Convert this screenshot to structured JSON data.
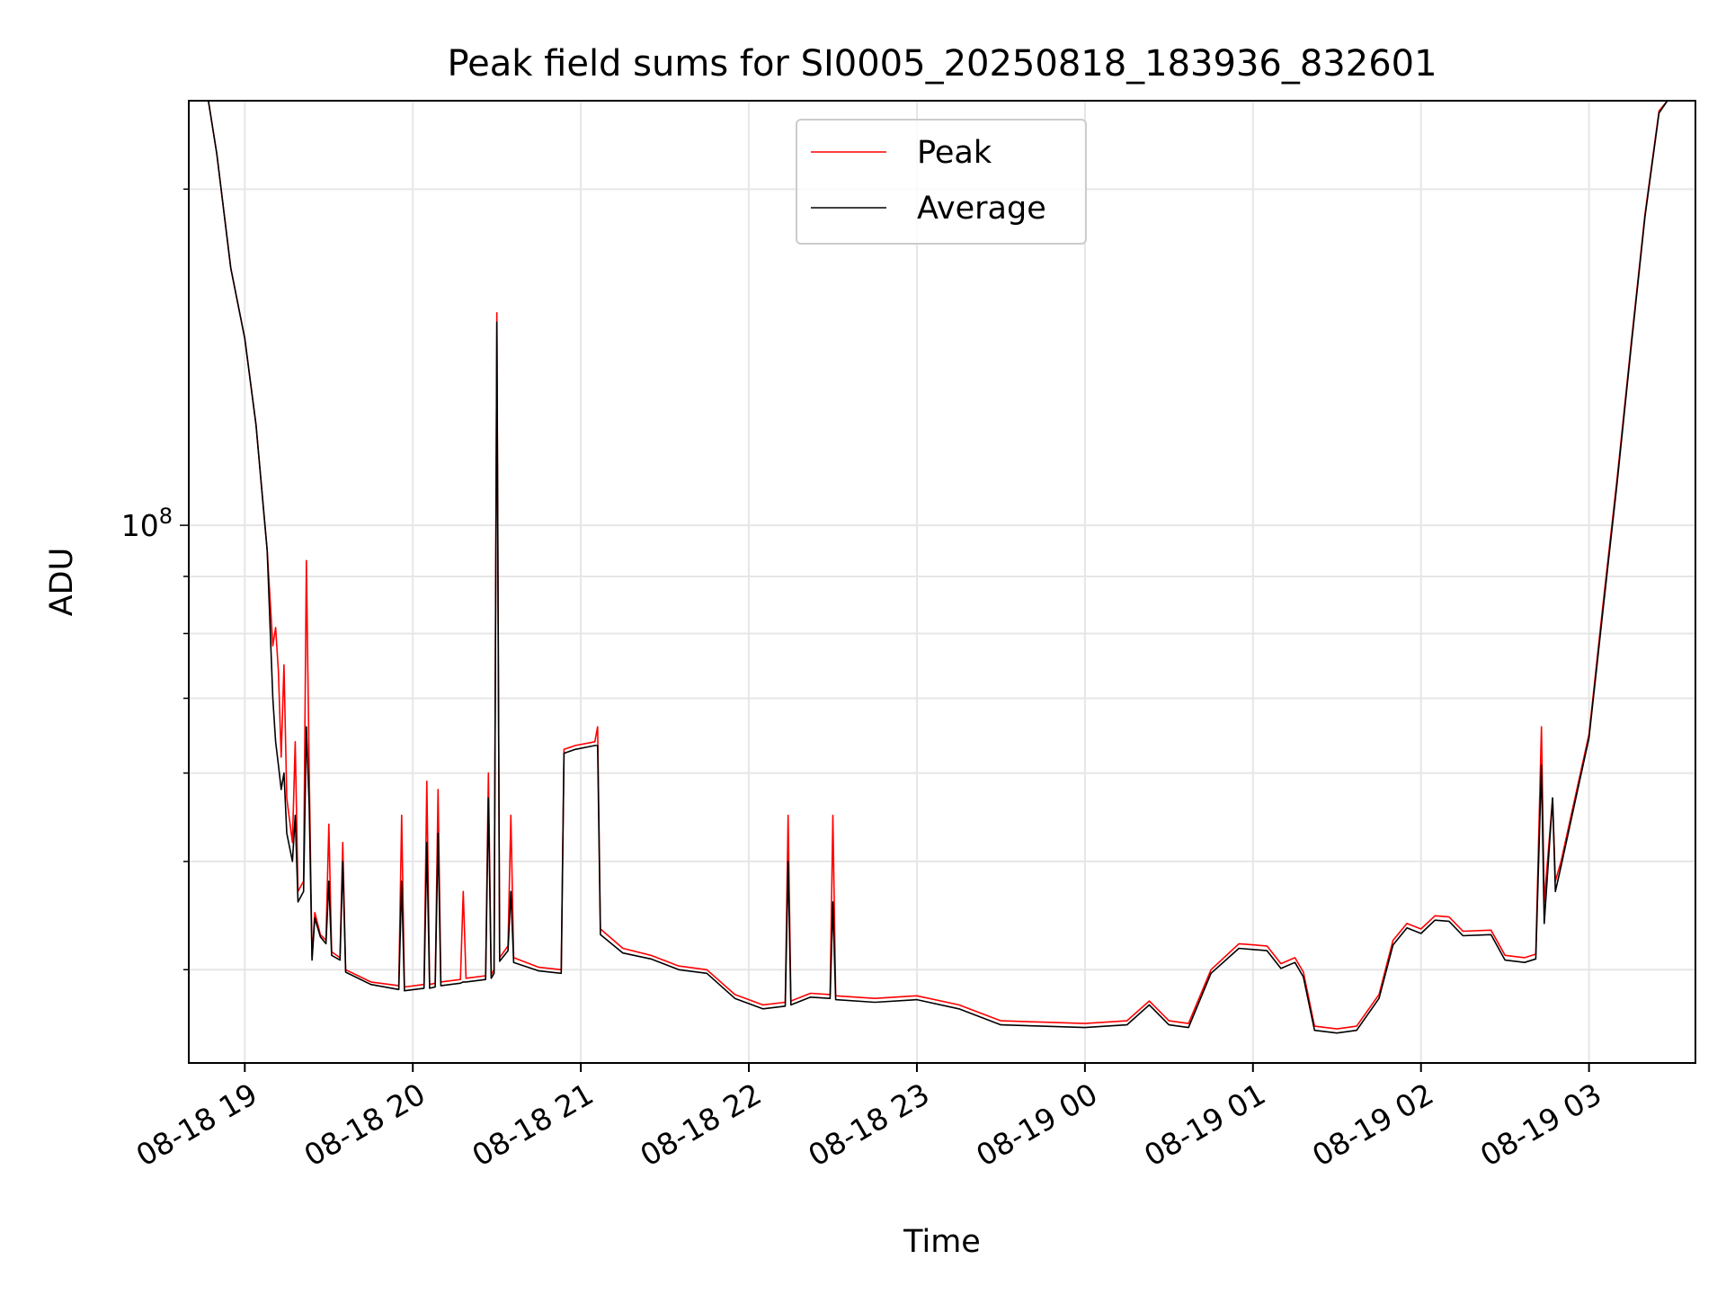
{
  "chart_data": {
    "type": "line",
    "title": "Peak field sums for SI0005_20250818_183936_832601",
    "xlabel": "Time",
    "ylabel": "ADU",
    "yscale": "log",
    "xlim": [
      "2025-08-18 18:40",
      "2025-08-19 03:38"
    ],
    "ylim": [
      33000000,
      240000000
    ],
    "grid": true,
    "legend_loc": "upper center",
    "x_ticks": [
      {
        "t": "2025-08-18 19:00",
        "label": "08-18 19"
      },
      {
        "t": "2025-08-18 20:00",
        "label": "08-18 20"
      },
      {
        "t": "2025-08-18 21:00",
        "label": "08-18 21"
      },
      {
        "t": "2025-08-18 22:00",
        "label": "08-18 22"
      },
      {
        "t": "2025-08-18 23:00",
        "label": "08-18 23"
      },
      {
        "t": "2025-08-19 00:00",
        "label": "08-19 00"
      },
      {
        "t": "2025-08-19 01:00",
        "label": "08-19 01"
      },
      {
        "t": "2025-08-19 02:00",
        "label": "08-19 02"
      },
      {
        "t": "2025-08-19 03:00",
        "label": "08-19 03"
      }
    ],
    "y_tick_label": {
      "value": 100000000,
      "base": "10",
      "exp": "8"
    },
    "series": [
      {
        "name": "Peak",
        "color": "#ff0000",
        "points": [
          [
            "2025-08-18 18:40",
            240000000
          ],
          [
            "2025-08-18 18:47",
            240000000
          ],
          [
            "2025-08-18 18:50",
            215000000
          ],
          [
            "2025-08-18 18:55",
            170000000
          ],
          [
            "2025-08-18 19:00",
            147000000
          ],
          [
            "2025-08-18 19:04",
            123000000
          ],
          [
            "2025-08-18 19:08",
            95000000
          ],
          [
            "2025-08-18 19:10",
            78000000
          ],
          [
            "2025-08-18 19:11",
            81000000
          ],
          [
            "2025-08-18 19:12",
            74000000
          ],
          [
            "2025-08-18 19:13",
            62000000
          ],
          [
            "2025-08-18 19:14",
            75000000
          ],
          [
            "2025-08-18 19:15",
            57000000
          ],
          [
            "2025-08-18 19:17",
            52000000
          ],
          [
            "2025-08-18 19:18",
            64000000
          ],
          [
            "2025-08-18 19:19",
            47000000
          ],
          [
            "2025-08-18 19:21",
            48000000
          ],
          [
            "2025-08-18 19:22",
            93000000
          ],
          [
            "2025-08-18 19:23",
            60000000
          ],
          [
            "2025-08-18 19:24",
            41000000
          ],
          [
            "2025-08-18 19:25",
            45000000
          ],
          [
            "2025-08-18 19:27",
            43000000
          ],
          [
            "2025-08-18 19:29",
            42500000
          ],
          [
            "2025-08-18 19:30",
            54000000
          ],
          [
            "2025-08-18 19:31",
            41500000
          ],
          [
            "2025-08-18 19:34",
            41000000
          ],
          [
            "2025-08-18 19:35",
            52000000
          ],
          [
            "2025-08-18 19:36",
            40000000
          ],
          [
            "2025-08-18 19:45",
            39000000
          ],
          [
            "2025-08-18 19:55",
            38700000
          ],
          [
            "2025-08-18 19:56",
            55000000
          ],
          [
            "2025-08-18 19:57",
            38600000
          ],
          [
            "2025-08-18 20:04",
            38800000
          ],
          [
            "2025-08-18 20:05",
            59000000
          ],
          [
            "2025-08-18 20:06",
            38800000
          ],
          [
            "2025-08-18 20:08",
            38900000
          ],
          [
            "2025-08-18 20:09",
            58000000
          ],
          [
            "2025-08-18 20:10",
            39000000
          ],
          [
            "2025-08-18 20:17",
            39200000
          ],
          [
            "2025-08-18 20:18",
            47000000
          ],
          [
            "2025-08-18 20:19",
            39300000
          ],
          [
            "2025-08-18 20:26",
            39500000
          ],
          [
            "2025-08-18 20:27",
            60000000
          ],
          [
            "2025-08-18 20:28",
            39600000
          ],
          [
            "2025-08-18 20:29",
            40000000
          ],
          [
            "2025-08-18 20:30",
            155000000
          ],
          [
            "2025-08-18 20:31",
            41000000
          ],
          [
            "2025-08-18 20:34",
            42000000
          ],
          [
            "2025-08-18 20:35",
            55000000
          ],
          [
            "2025-08-18 20:36",
            41000000
          ],
          [
            "2025-08-18 20:45",
            40200000
          ],
          [
            "2025-08-18 20:53",
            40000000
          ],
          [
            "2025-08-18 20:54",
            63000000
          ],
          [
            "2025-08-18 20:58",
            63500000
          ],
          [
            "2025-08-18 21:05",
            64000000
          ],
          [
            "2025-08-18 21:06",
            66000000
          ],
          [
            "2025-08-18 21:07",
            43500000
          ],
          [
            "2025-08-18 21:15",
            41800000
          ],
          [
            "2025-08-18 21:25",
            41200000
          ],
          [
            "2025-08-18 21:35",
            40300000
          ],
          [
            "2025-08-18 21:45",
            40000000
          ],
          [
            "2025-08-18 21:55",
            38000000
          ],
          [
            "2025-08-18 22:05",
            37200000
          ],
          [
            "2025-08-18 22:13",
            37400000
          ],
          [
            "2025-08-18 22:14",
            55000000
          ],
          [
            "2025-08-18 22:15",
            37500000
          ],
          [
            "2025-08-18 22:22",
            38100000
          ],
          [
            "2025-08-18 22:29",
            38000000
          ],
          [
            "2025-08-18 22:30",
            55000000
          ],
          [
            "2025-08-18 22:31",
            37900000
          ],
          [
            "2025-08-18 22:45",
            37700000
          ],
          [
            "2025-08-18 23:00",
            37900000
          ],
          [
            "2025-08-18 23:15",
            37200000
          ],
          [
            "2025-08-18 23:30",
            36000000
          ],
          [
            "2025-08-18 23:45",
            35900000
          ],
          [
            "2025-08-19 00:00",
            35800000
          ],
          [
            "2025-08-19 00:15",
            36000000
          ],
          [
            "2025-08-19 00:23",
            37500000
          ],
          [
            "2025-08-19 00:30",
            36000000
          ],
          [
            "2025-08-19 00:37",
            35800000
          ],
          [
            "2025-08-19 00:45",
            40000000
          ],
          [
            "2025-08-19 00:55",
            42200000
          ],
          [
            "2025-08-19 01:05",
            42000000
          ],
          [
            "2025-08-19 01:10",
            40500000
          ],
          [
            "2025-08-19 01:15",
            41000000
          ],
          [
            "2025-08-19 01:18",
            39800000
          ],
          [
            "2025-08-19 01:22",
            35600000
          ],
          [
            "2025-08-19 01:30",
            35400000
          ],
          [
            "2025-08-19 01:37",
            35600000
          ],
          [
            "2025-08-19 01:45",
            38000000
          ],
          [
            "2025-08-19 01:50",
            42500000
          ],
          [
            "2025-08-19 01:55",
            44000000
          ],
          [
            "2025-08-19 02:00",
            43500000
          ],
          [
            "2025-08-19 02:05",
            44700000
          ],
          [
            "2025-08-19 02:10",
            44600000
          ],
          [
            "2025-08-19 02:15",
            43300000
          ],
          [
            "2025-08-19 02:25",
            43400000
          ],
          [
            "2025-08-19 02:30",
            41200000
          ],
          [
            "2025-08-19 02:37",
            41000000
          ],
          [
            "2025-08-19 02:41",
            41300000
          ],
          [
            "2025-08-19 02:43",
            66000000
          ],
          [
            "2025-08-19 02:44",
            46000000
          ],
          [
            "2025-08-19 02:47",
            57000000
          ],
          [
            "2025-08-19 02:48",
            48000000
          ],
          [
            "2025-08-19 02:50",
            50000000
          ],
          [
            "2025-08-19 02:55",
            57000000
          ],
          [
            "2025-08-19 03:00",
            65000000
          ],
          [
            "2025-08-19 03:05",
            85000000
          ],
          [
            "2025-08-19 03:10",
            110000000
          ],
          [
            "2025-08-19 03:15",
            145000000
          ],
          [
            "2025-08-19 03:20",
            190000000
          ],
          [
            "2025-08-19 03:25",
            235000000
          ],
          [
            "2025-08-19 03:28",
            240000000
          ],
          [
            "2025-08-19 03:38",
            240000000
          ]
        ]
      },
      {
        "name": "Average",
        "color": "#000000",
        "points": [
          [
            "2025-08-18 18:40",
            240000000
          ],
          [
            "2025-08-18 18:47",
            240000000
          ],
          [
            "2025-08-18 18:50",
            215000000
          ],
          [
            "2025-08-18 18:55",
            170000000
          ],
          [
            "2025-08-18 19:00",
            147000000
          ],
          [
            "2025-08-18 19:04",
            123000000
          ],
          [
            "2025-08-18 19:08",
            95000000
          ],
          [
            "2025-08-18 19:10",
            70000000
          ],
          [
            "2025-08-18 19:11",
            64000000
          ],
          [
            "2025-08-18 19:12",
            61000000
          ],
          [
            "2025-08-18 19:13",
            58000000
          ],
          [
            "2025-08-18 19:14",
            60000000
          ],
          [
            "2025-08-18 19:15",
            53000000
          ],
          [
            "2025-08-18 19:17",
            50000000
          ],
          [
            "2025-08-18 19:18",
            55000000
          ],
          [
            "2025-08-18 19:19",
            46000000
          ],
          [
            "2025-08-18 19:21",
            47000000
          ],
          [
            "2025-08-18 19:22",
            66000000
          ],
          [
            "2025-08-18 19:23",
            56000000
          ],
          [
            "2025-08-18 19:24",
            40800000
          ],
          [
            "2025-08-18 19:25",
            44500000
          ],
          [
            "2025-08-18 19:27",
            42800000
          ],
          [
            "2025-08-18 19:29",
            42200000
          ],
          [
            "2025-08-18 19:30",
            48000000
          ],
          [
            "2025-08-18 19:31",
            41200000
          ],
          [
            "2025-08-18 19:34",
            40800000
          ],
          [
            "2025-08-18 19:35",
            50000000
          ],
          [
            "2025-08-18 19:36",
            39800000
          ],
          [
            "2025-08-18 19:45",
            38800000
          ],
          [
            "2025-08-18 19:55",
            38400000
          ],
          [
            "2025-08-18 19:56",
            48000000
          ],
          [
            "2025-08-18 19:57",
            38300000
          ],
          [
            "2025-08-18 20:04",
            38500000
          ],
          [
            "2025-08-18 20:05",
            52000000
          ],
          [
            "2025-08-18 20:06",
            38500000
          ],
          [
            "2025-08-18 20:08",
            38600000
          ],
          [
            "2025-08-18 20:09",
            53000000
          ],
          [
            "2025-08-18 20:10",
            38700000
          ],
          [
            "2025-08-18 20:17",
            38900000
          ],
          [
            "2025-08-18 20:18",
            39000000
          ],
          [
            "2025-08-18 20:19",
            39000000
          ],
          [
            "2025-08-18 20:26",
            39200000
          ],
          [
            "2025-08-18 20:27",
            57000000
          ],
          [
            "2025-08-18 20:28",
            39300000
          ],
          [
            "2025-08-18 20:29",
            39700000
          ],
          [
            "2025-08-18 20:30",
            152000000
          ],
          [
            "2025-08-18 20:31",
            40700000
          ],
          [
            "2025-08-18 20:34",
            41600000
          ],
          [
            "2025-08-18 20:35",
            47000000
          ],
          [
            "2025-08-18 20:36",
            40600000
          ],
          [
            "2025-08-18 20:45",
            39900000
          ],
          [
            "2025-08-18 20:53",
            39700000
          ],
          [
            "2025-08-18 20:54",
            62500000
          ],
          [
            "2025-08-18 20:58",
            63000000
          ],
          [
            "2025-08-18 21:05",
            63500000
          ],
          [
            "2025-08-18 21:06",
            63500000
          ],
          [
            "2025-08-18 21:07",
            43000000
          ],
          [
            "2025-08-18 21:15",
            41400000
          ],
          [
            "2025-08-18 21:25",
            40900000
          ],
          [
            "2025-08-18 21:35",
            40000000
          ],
          [
            "2025-08-18 21:45",
            39700000
          ],
          [
            "2025-08-18 21:55",
            37700000
          ],
          [
            "2025-08-18 22:05",
            36900000
          ],
          [
            "2025-08-18 22:13",
            37100000
          ],
          [
            "2025-08-18 22:14",
            50000000
          ],
          [
            "2025-08-18 22:15",
            37200000
          ],
          [
            "2025-08-18 22:22",
            37800000
          ],
          [
            "2025-08-18 22:29",
            37700000
          ],
          [
            "2025-08-18 22:30",
            46000000
          ],
          [
            "2025-08-18 22:31",
            37600000
          ],
          [
            "2025-08-18 22:45",
            37400000
          ],
          [
            "2025-08-18 23:00",
            37600000
          ],
          [
            "2025-08-18 23:15",
            36900000
          ],
          [
            "2025-08-18 23:30",
            35700000
          ],
          [
            "2025-08-18 23:45",
            35600000
          ],
          [
            "2025-08-19 00:00",
            35500000
          ],
          [
            "2025-08-19 00:15",
            35700000
          ],
          [
            "2025-08-19 00:23",
            37200000
          ],
          [
            "2025-08-19 00:30",
            35700000
          ],
          [
            "2025-08-19 00:37",
            35500000
          ],
          [
            "2025-08-19 00:45",
            39700000
          ],
          [
            "2025-08-19 00:55",
            41800000
          ],
          [
            "2025-08-19 01:05",
            41600000
          ],
          [
            "2025-08-19 01:10",
            40100000
          ],
          [
            "2025-08-19 01:15",
            40600000
          ],
          [
            "2025-08-19 01:18",
            39400000
          ],
          [
            "2025-08-19 01:22",
            35300000
          ],
          [
            "2025-08-19 01:30",
            35100000
          ],
          [
            "2025-08-19 01:37",
            35300000
          ],
          [
            "2025-08-19 01:45",
            37700000
          ],
          [
            "2025-08-19 01:50",
            42100000
          ],
          [
            "2025-08-19 01:55",
            43600000
          ],
          [
            "2025-08-19 02:00",
            43100000
          ],
          [
            "2025-08-19 02:05",
            44300000
          ],
          [
            "2025-08-19 02:10",
            44200000
          ],
          [
            "2025-08-19 02:15",
            42900000
          ],
          [
            "2025-08-19 02:25",
            43000000
          ],
          [
            "2025-08-19 02:30",
            40800000
          ],
          [
            "2025-08-19 02:37",
            40600000
          ],
          [
            "2025-08-19 02:41",
            40900000
          ],
          [
            "2025-08-19 02:43",
            61000000
          ],
          [
            "2025-08-19 02:44",
            44000000
          ],
          [
            "2025-08-19 02:47",
            57000000
          ],
          [
            "2025-08-19 02:48",
            47000000
          ],
          [
            "2025-08-19 02:50",
            49500000
          ],
          [
            "2025-08-19 02:55",
            56500000
          ],
          [
            "2025-08-19 03:00",
            64500000
          ],
          [
            "2025-08-19 03:05",
            84000000
          ],
          [
            "2025-08-19 03:10",
            109000000
          ],
          [
            "2025-08-19 03:15",
            144000000
          ],
          [
            "2025-08-19 03:20",
            189000000
          ],
          [
            "2025-08-19 03:25",
            234000000
          ],
          [
            "2025-08-19 03:28",
            240000000
          ],
          [
            "2025-08-19 03:38",
            240000000
          ]
        ]
      }
    ]
  }
}
